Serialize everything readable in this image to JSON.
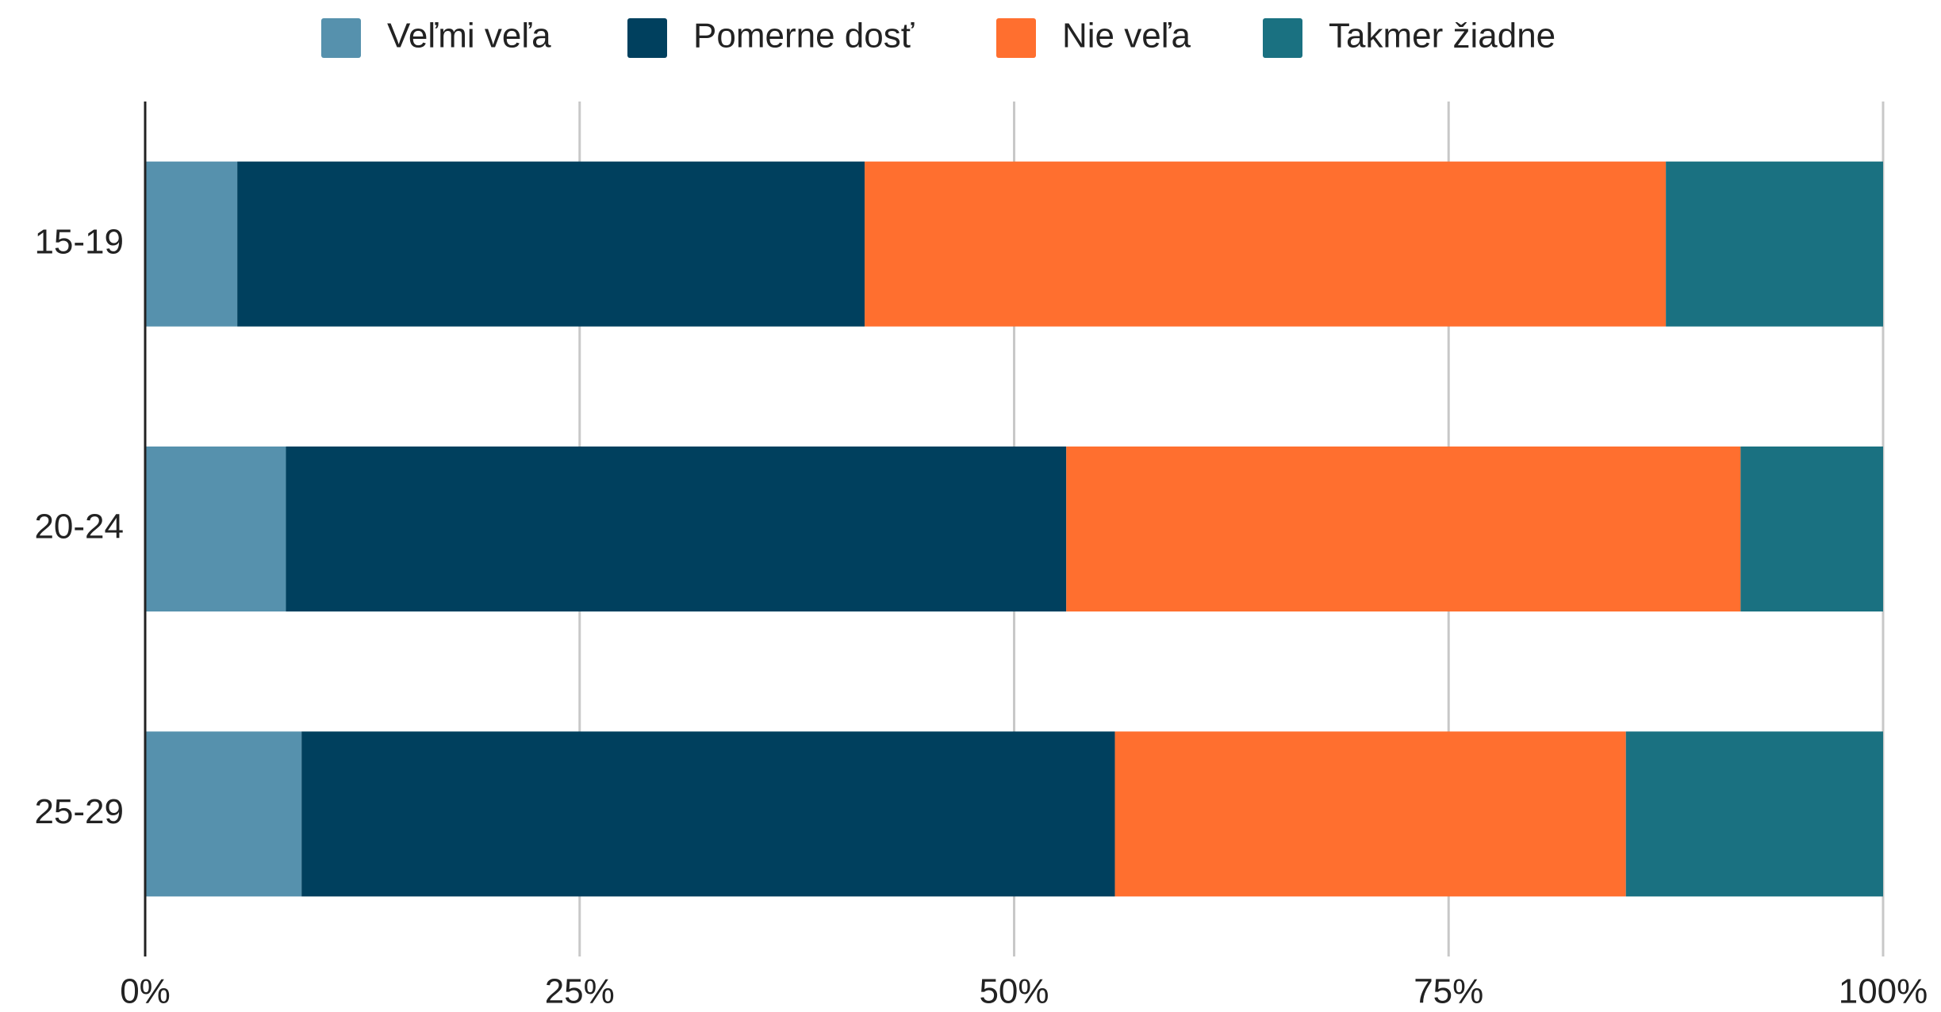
{
  "chart_data": {
    "type": "stacked_bar_horizontal",
    "categories": [
      "15-19",
      "20-24",
      "25-29"
    ],
    "series": [
      {
        "name": "Veľmi veľa",
        "color": "#5691ad",
        "values": [
          5.3,
          8.1,
          9.0
        ]
      },
      {
        "name": "Pomerne dosť",
        "color": "#00405e",
        "values": [
          36.1,
          44.9,
          46.8
        ]
      },
      {
        "name": "Nie veľa",
        "color": "#ff6f2f",
        "values": [
          46.1,
          38.8,
          29.4
        ]
      },
      {
        "name": "Takmer žiadne",
        "color": "#1a7181",
        "values": [
          12.5,
          8.2,
          14.8
        ]
      }
    ],
    "xlim": [
      0,
      100
    ],
    "xticks": [
      {
        "value": 0,
        "label": "0%"
      },
      {
        "value": 25,
        "label": "25%"
      },
      {
        "value": 50,
        "label": "50%"
      },
      {
        "value": 75,
        "label": "75%"
      },
      {
        "value": 100,
        "label": "100%"
      }
    ],
    "grid": true,
    "legend": "top"
  }
}
